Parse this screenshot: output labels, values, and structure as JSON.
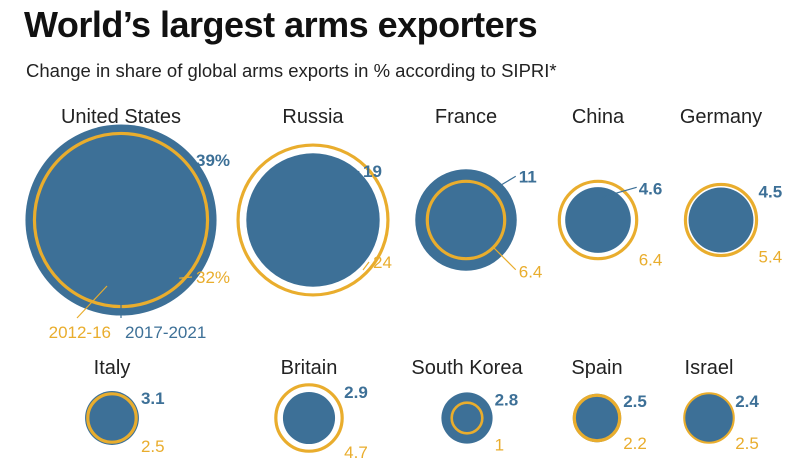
{
  "title": "World’s largest arms exporters",
  "subtitle": "Change in share of global arms exports in % according to SIPRI*",
  "colors": {
    "recent": "#3d7097",
    "earlier": "#e9ad2d",
    "country": "#222222"
  },
  "legend": {
    "earlier": "2012-16",
    "recent": "2017-2021"
  },
  "chart_data": {
    "type": "bubble",
    "title": "World’s largest arms exporters",
    "subtitle": "Change in share of global arms exports in % according to SIPRI*",
    "unit": "% of global arms exports",
    "series": [
      {
        "name": "2012-16",
        "style": "outline",
        "color": "#e9ad2d"
      },
      {
        "name": "2017-2021",
        "style": "filled",
        "color": "#3d7097"
      }
    ],
    "countries": [
      {
        "name": "United States",
        "recent": 39,
        "earlier": 32,
        "recent_label": "39%",
        "earlier_label": "32%"
      },
      {
        "name": "Russia",
        "recent": 19,
        "earlier": 24,
        "recent_label": "19",
        "earlier_label": "24"
      },
      {
        "name": "France",
        "recent": 11,
        "earlier": 6.4,
        "recent_label": "11",
        "earlier_label": "6.4"
      },
      {
        "name": "China",
        "recent": 4.6,
        "earlier": 6.4,
        "recent_label": "4.6",
        "earlier_label": "6.4"
      },
      {
        "name": "Germany",
        "recent": 4.5,
        "earlier": 5.4,
        "recent_label": "4.5",
        "earlier_label": "5.4"
      },
      {
        "name": "Italy",
        "recent": 3.1,
        "earlier": 2.5,
        "recent_label": "3.1",
        "earlier_label": "2.5"
      },
      {
        "name": "Britain",
        "recent": 2.9,
        "earlier": 4.7,
        "recent_label": "2.9",
        "earlier_label": "4.7"
      },
      {
        "name": "South Korea",
        "recent": 2.8,
        "earlier": 1,
        "recent_label": "2.8",
        "earlier_label": "1"
      },
      {
        "name": "Spain",
        "recent": 2.5,
        "earlier": 2.2,
        "recent_label": "2.5",
        "earlier_label": "2.2"
      },
      {
        "name": "Israel",
        "recent": 2.4,
        "earlier": 2.5,
        "recent_label": "2.4",
        "earlier_label": "2.5"
      }
    ]
  }
}
